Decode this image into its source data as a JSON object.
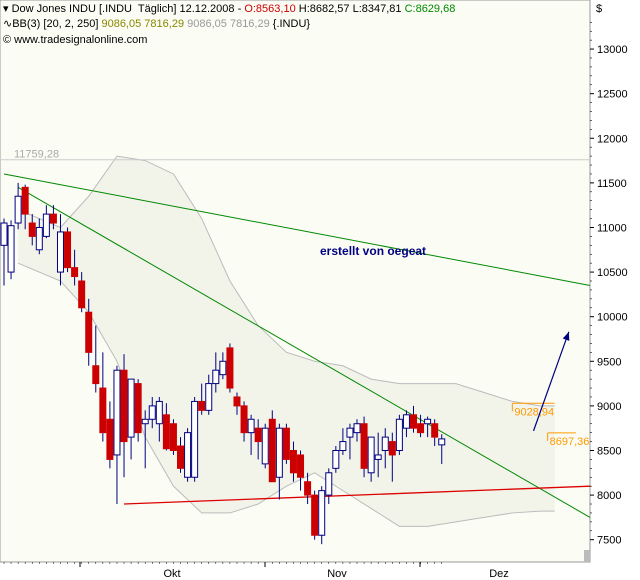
{
  "header": {
    "line1": {
      "name": "Dow Jones INDU [.INDU  Täglich] 12.12.2008 - ",
      "open": "O:8563,10",
      "high": " H:8682,57",
      "low": " L:8347,81",
      "close": " C:8629,68"
    },
    "line2": {
      "label": "BB(3) [20, 2, 250]",
      "values_a": " 9086,05 7816,29",
      "values_b": " 9086,05 7816,29",
      "suffix": " {.INDU}"
    },
    "line3": {
      "text": "© www.tradesignalonline.com"
    }
  },
  "currency_symbol": "$",
  "watermark_text": "erstellt von oegeat",
  "colors": {
    "up_candle": "#ffffff",
    "down_candle": "#cc0000",
    "bollinger": "#bbbbbb",
    "green_trendline": "#008800",
    "red_support": "#dd0000",
    "arrow": "#000080",
    "annotation_orange": "#ff9900",
    "plot_background": "#fbfdf5"
  },
  "chart_data": {
    "type": "candlestick",
    "title": "Dow Jones INDU [.INDU  Täglich] 12.12.2008",
    "x_tick_labels": [
      "Okt",
      "Nov",
      "Dez"
    ],
    "y_ticks": [
      7500,
      8000,
      8500,
      9000,
      9500,
      10000,
      10500,
      11000,
      11500,
      12000,
      12500,
      13000
    ],
    "y_tick_labels": [
      "7500",
      "8000",
      "8500",
      "9000",
      "9500",
      "10000",
      "10500",
      "11000",
      "11500",
      "12000",
      "12500",
      "13000"
    ],
    "ylim": [
      7250,
      13550
    ],
    "x_range": [
      0,
      83
    ],
    "candles": [
      {
        "o": 10800,
        "h": 11100,
        "l": 10350,
        "c": 11050
      },
      {
        "o": 10500,
        "h": 11080,
        "l": 10420,
        "c": 11020
      },
      {
        "o": 11050,
        "h": 11500,
        "l": 10980,
        "c": 11350
      },
      {
        "o": 11450,
        "h": 11480,
        "l": 10980,
        "c": 11150
      },
      {
        "o": 11050,
        "h": 11150,
        "l": 10800,
        "c": 10900
      },
      {
        "o": 10750,
        "h": 11100,
        "l": 10700,
        "c": 11000
      },
      {
        "o": 10900,
        "h": 11250,
        "l": 10880,
        "c": 11150
      },
      {
        "o": 11150,
        "h": 11250,
        "l": 10980,
        "c": 11050
      },
      {
        "o": 10500,
        "h": 11150,
        "l": 10350,
        "c": 10950
      },
      {
        "o": 10950,
        "h": 11000,
        "l": 10500,
        "c": 10550
      },
      {
        "o": 10550,
        "h": 10750,
        "l": 10350,
        "c": 10450
      },
      {
        "o": 10400,
        "h": 10500,
        "l": 10050,
        "c": 10100
      },
      {
        "o": 10050,
        "h": 10200,
        "l": 9450,
        "c": 9600
      },
      {
        "o": 9450,
        "h": 9900,
        "l": 9150,
        "c": 9250
      },
      {
        "o": 9200,
        "h": 9600,
        "l": 8600,
        "c": 8700
      },
      {
        "o": 8850,
        "h": 9050,
        "l": 8300,
        "c": 8400
      },
      {
        "o": 8450,
        "h": 9450,
        "l": 7900,
        "c": 9400
      },
      {
        "o": 9400,
        "h": 9580,
        "l": 8200,
        "c": 8600
      },
      {
        "o": 8650,
        "h": 9300,
        "l": 8400,
        "c": 9300
      },
      {
        "o": 9250,
        "h": 9300,
        "l": 8600,
        "c": 8700
      },
      {
        "o": 8800,
        "h": 8950,
        "l": 8300,
        "c": 8850
      },
      {
        "o": 8850,
        "h": 9100,
        "l": 8750,
        "c": 9000
      },
      {
        "o": 8800,
        "h": 9100,
        "l": 8600,
        "c": 9050
      },
      {
        "o": 8900,
        "h": 9030,
        "l": 8500,
        "c": 8520
      },
      {
        "o": 8800,
        "h": 8850,
        "l": 8450,
        "c": 8500
      },
      {
        "o": 8550,
        "h": 8650,
        "l": 8250,
        "c": 8300
      },
      {
        "o": 8200,
        "h": 8750,
        "l": 8150,
        "c": 8700
      },
      {
        "o": 8200,
        "h": 9100,
        "l": 8150,
        "c": 9050
      },
      {
        "o": 9050,
        "h": 9250,
        "l": 8900,
        "c": 8950
      },
      {
        "o": 8950,
        "h": 9350,
        "l": 8900,
        "c": 9250
      },
      {
        "o": 9250,
        "h": 9600,
        "l": 9150,
        "c": 9400
      },
      {
        "o": 9350,
        "h": 9600,
        "l": 9300,
        "c": 9500
      },
      {
        "o": 9650,
        "h": 9700,
        "l": 9150,
        "c": 9200
      },
      {
        "o": 9100,
        "h": 9150,
        "l": 8900,
        "c": 9000
      },
      {
        "o": 9000,
        "h": 9050,
        "l": 8600,
        "c": 8700
      },
      {
        "o": 8700,
        "h": 8900,
        "l": 8450,
        "c": 8850
      },
      {
        "o": 8750,
        "h": 8850,
        "l": 8400,
        "c": 8600
      },
      {
        "o": 8350,
        "h": 8800,
        "l": 8300,
        "c": 8750
      },
      {
        "o": 8850,
        "h": 8950,
        "l": 8150,
        "c": 8150
      },
      {
        "o": 8200,
        "h": 8800,
        "l": 7950,
        "c": 8750
      },
      {
        "o": 8750,
        "h": 8800,
        "l": 8350,
        "c": 8400
      },
      {
        "o": 8500,
        "h": 8600,
        "l": 8150,
        "c": 8250
      },
      {
        "o": 8450,
        "h": 8500,
        "l": 8050,
        "c": 8200
      },
      {
        "o": 8150,
        "h": 8250,
        "l": 7900,
        "c": 8000
      },
      {
        "o": 8000,
        "h": 8050,
        "l": 7500,
        "c": 7550
      },
      {
        "o": 7550,
        "h": 8100,
        "l": 7450,
        "c": 8050
      },
      {
        "o": 8000,
        "h": 8300,
        "l": 7900,
        "c": 8250
      },
      {
        "o": 8300,
        "h": 8550,
        "l": 8250,
        "c": 8500
      },
      {
        "o": 8500,
        "h": 8750,
        "l": 8450,
        "c": 8600
      },
      {
        "o": 8650,
        "h": 8800,
        "l": 8400,
        "c": 8750
      },
      {
        "o": 8700,
        "h": 8850,
        "l": 8600,
        "c": 8800
      },
      {
        "o": 8800,
        "h": 8880,
        "l": 8200,
        "c": 8300
      },
      {
        "o": 8250,
        "h": 8650,
        "l": 8150,
        "c": 8650
      },
      {
        "o": 8400,
        "h": 8700,
        "l": 8200,
        "c": 8450
      },
      {
        "o": 8500,
        "h": 8750,
        "l": 8300,
        "c": 8650
      },
      {
        "o": 8600,
        "h": 8700,
        "l": 8150,
        "c": 8450
      },
      {
        "o": 8500,
        "h": 8900,
        "l": 8450,
        "c": 8850
      },
      {
        "o": 8750,
        "h": 8950,
        "l": 8650,
        "c": 8900
      },
      {
        "o": 8900,
        "h": 9000,
        "l": 8700,
        "c": 8750
      },
      {
        "o": 8800,
        "h": 8900,
        "l": 8650,
        "c": 8700
      },
      {
        "o": 8800,
        "h": 8880,
        "l": 8650,
        "c": 8850
      },
      {
        "o": 8800,
        "h": 8850,
        "l": 8550,
        "c": 8650
      },
      {
        "o": 8563,
        "h": 8683,
        "l": 8348,
        "c": 8630
      }
    ],
    "bollinger_upper": [
      [
        2,
        11200
      ],
      [
        8,
        11000
      ],
      [
        12,
        11350
      ],
      [
        16,
        11800
      ],
      [
        20,
        11750
      ],
      [
        24,
        11600
      ],
      [
        28,
        11100
      ],
      [
        32,
        10400
      ],
      [
        36,
        9900
      ],
      [
        40,
        9600
      ],
      [
        44,
        9500
      ],
      [
        48,
        9450
      ],
      [
        52,
        9300
      ],
      [
        56,
        9250
      ],
      [
        60,
        9250
      ],
      [
        64,
        9250
      ],
      [
        68,
        9150
      ],
      [
        72,
        9050
      ],
      [
        76,
        9000
      ],
      [
        78,
        9000
      ]
    ],
    "bollinger_lower": [
      [
        2,
        10600
      ],
      [
        8,
        10400
      ],
      [
        12,
        10050
      ],
      [
        16,
        9500
      ],
      [
        20,
        8650
      ],
      [
        24,
        8100
      ],
      [
        28,
        7800
      ],
      [
        32,
        7800
      ],
      [
        36,
        7900
      ],
      [
        40,
        8100
      ],
      [
        44,
        8250
      ],
      [
        48,
        8050
      ],
      [
        52,
        7850
      ],
      [
        56,
        7650
      ],
      [
        60,
        7650
      ],
      [
        64,
        7700
      ],
      [
        68,
        7750
      ],
      [
        72,
        7800
      ],
      [
        76,
        7820
      ],
      [
        78,
        7820
      ]
    ],
    "level_line": {
      "value": 11759.28,
      "label": "11759,28"
    },
    "green_trendlines": [
      {
        "from": [
          0,
          11600
        ],
        "to": [
          83,
          10350
        ]
      },
      {
        "from": [
          2,
          11450
        ],
        "to": [
          83,
          7750
        ]
      }
    ],
    "red_support": {
      "from": [
        17,
        7900
      ],
      "to": [
        83,
        8100
      ]
    },
    "arrow": {
      "from": [
        75,
        8720
      ],
      "to": [
        80,
        9830
      ]
    },
    "price_annotations": [
      {
        "value": 9028.94,
        "label": "9028,94",
        "x_start": 72,
        "x_end": 78
      },
      {
        "value": 8697.36,
        "label": "8697,36",
        "x_start": 77,
        "x_end": 81
      }
    ],
    "grid": false
  }
}
